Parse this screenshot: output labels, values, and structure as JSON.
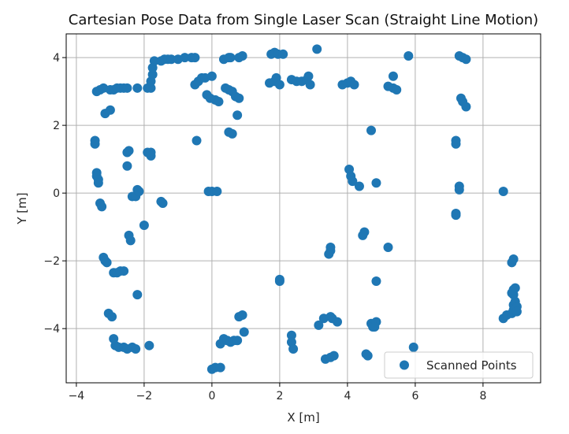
{
  "colors": {
    "point": "#1f77b4",
    "grid": "#b0b0b0",
    "axis": "#000000"
  },
  "chart_data": {
    "type": "scatter",
    "title": "Cartesian Pose Data from Single Laser Scan (Straight Line Motion)",
    "xlabel": "X [m]",
    "ylabel": "Y [m]",
    "xlim": [
      -4.3,
      9.7
    ],
    "ylim": [
      -5.6,
      4.7
    ],
    "xticks": [
      -4,
      -2,
      0,
      2,
      4,
      6,
      8
    ],
    "yticks": [
      -4,
      -2,
      0,
      2,
      4
    ],
    "xtick_labels": [
      "−4",
      "−2",
      "0",
      "2",
      "4",
      "6",
      "8"
    ],
    "ytick_labels": [
      "−4",
      "−2",
      "0",
      "2",
      "4"
    ],
    "grid": true,
    "legend_position": "lower-right",
    "series": [
      {
        "name": "Scanned Points",
        "marker": "circle",
        "points": [
          [
            -3.4,
            3.0
          ],
          [
            -3.3,
            3.05
          ],
          [
            -3.2,
            3.1
          ],
          [
            -3.0,
            3.05
          ],
          [
            -2.9,
            3.05
          ],
          [
            -2.8,
            3.1
          ],
          [
            -2.7,
            3.1
          ],
          [
            -2.6,
            3.1
          ],
          [
            -2.5,
            3.1
          ],
          [
            -2.2,
            3.1
          ],
          [
            -1.9,
            3.1
          ],
          [
            -1.8,
            3.1
          ],
          [
            -1.8,
            3.3
          ],
          [
            -1.75,
            3.5
          ],
          [
            -1.75,
            3.7
          ],
          [
            -1.7,
            3.9
          ],
          [
            -1.5,
            3.9
          ],
          [
            -1.4,
            3.95
          ],
          [
            -1.3,
            3.95
          ],
          [
            -1.2,
            3.95
          ],
          [
            -1.0,
            3.95
          ],
          [
            -0.8,
            4.0
          ],
          [
            -0.6,
            4.0
          ],
          [
            -0.5,
            4.0
          ],
          [
            -3.15,
            2.35
          ],
          [
            -3.0,
            2.45
          ],
          [
            -2.5,
            1.2
          ],
          [
            -2.45,
            1.25
          ],
          [
            -2.5,
            0.8
          ],
          [
            -1.9,
            1.2
          ],
          [
            -1.8,
            1.2
          ],
          [
            -1.8,
            1.1
          ],
          [
            -3.45,
            1.55
          ],
          [
            -3.45,
            1.45
          ],
          [
            -3.4,
            0.6
          ],
          [
            -3.4,
            0.5
          ],
          [
            -3.35,
            0.4
          ],
          [
            -3.35,
            0.3
          ],
          [
            -3.3,
            -0.3
          ],
          [
            -3.25,
            -0.4
          ],
          [
            -2.35,
            -0.1
          ],
          [
            -2.25,
            -0.1
          ],
          [
            -2.2,
            0.1
          ],
          [
            -2.15,
            0.05
          ],
          [
            -2.0,
            -0.95
          ],
          [
            -2.45,
            -1.25
          ],
          [
            -2.4,
            -1.4
          ],
          [
            -1.5,
            -0.25
          ],
          [
            -1.45,
            -0.3
          ],
          [
            -3.2,
            -1.9
          ],
          [
            -3.15,
            -2.0
          ],
          [
            -3.1,
            -2.05
          ],
          [
            -2.9,
            -2.35
          ],
          [
            -2.8,
            -2.35
          ],
          [
            -2.7,
            -2.3
          ],
          [
            -2.6,
            -2.3
          ],
          [
            -2.2,
            -3.0
          ],
          [
            -3.05,
            -3.55
          ],
          [
            -2.95,
            -3.65
          ],
          [
            -2.9,
            -4.3
          ],
          [
            -2.85,
            -4.5
          ],
          [
            -2.75,
            -4.55
          ],
          [
            -2.6,
            -4.55
          ],
          [
            -2.5,
            -4.6
          ],
          [
            -2.35,
            -4.55
          ],
          [
            -2.25,
            -4.6
          ],
          [
            -1.85,
            -4.5
          ],
          [
            -0.5,
            3.2
          ],
          [
            -0.4,
            3.3
          ],
          [
            -0.3,
            3.4
          ],
          [
            -0.2,
            3.4
          ],
          [
            0.0,
            3.45
          ],
          [
            -0.15,
            2.9
          ],
          [
            -0.05,
            2.8
          ],
          [
            0.1,
            2.75
          ],
          [
            0.2,
            2.7
          ],
          [
            -0.45,
            1.55
          ],
          [
            -0.1,
            0.05
          ],
          [
            0.0,
            0.05
          ],
          [
            0.15,
            0.05
          ],
          [
            0.35,
            3.95
          ],
          [
            0.5,
            4.0
          ],
          [
            0.55,
            4.0
          ],
          [
            0.8,
            4.0
          ],
          [
            0.9,
            4.05
          ],
          [
            0.4,
            3.1
          ],
          [
            0.5,
            3.05
          ],
          [
            0.6,
            3.0
          ],
          [
            0.7,
            2.85
          ],
          [
            0.8,
            2.8
          ],
          [
            0.75,
            2.3
          ],
          [
            0.5,
            1.8
          ],
          [
            0.6,
            1.75
          ],
          [
            1.75,
            4.1
          ],
          [
            1.85,
            4.15
          ],
          [
            1.95,
            4.1
          ],
          [
            2.1,
            4.1
          ],
          [
            3.1,
            4.25
          ],
          [
            1.7,
            3.25
          ],
          [
            1.85,
            3.3
          ],
          [
            1.9,
            3.4
          ],
          [
            2.0,
            3.2
          ],
          [
            2.35,
            3.35
          ],
          [
            2.5,
            3.3
          ],
          [
            2.65,
            3.3
          ],
          [
            2.8,
            3.35
          ],
          [
            2.85,
            3.45
          ],
          [
            2.9,
            3.2
          ],
          [
            3.85,
            3.2
          ],
          [
            4.0,
            3.25
          ],
          [
            4.1,
            3.3
          ],
          [
            4.2,
            3.2
          ],
          [
            4.05,
            0.7
          ],
          [
            4.1,
            0.5
          ],
          [
            4.15,
            0.35
          ],
          [
            4.35,
            0.2
          ],
          [
            4.85,
            0.3
          ],
          [
            4.7,
            1.85
          ],
          [
            5.2,
            3.15
          ],
          [
            5.35,
            3.1
          ],
          [
            5.45,
            3.05
          ],
          [
            5.35,
            3.45
          ],
          [
            5.8,
            4.05
          ],
          [
            7.3,
            4.05
          ],
          [
            7.4,
            4.0
          ],
          [
            7.5,
            3.95
          ],
          [
            7.35,
            2.8
          ],
          [
            7.4,
            2.7
          ],
          [
            7.5,
            2.55
          ],
          [
            7.2,
            1.55
          ],
          [
            7.2,
            1.45
          ],
          [
            7.3,
            0.2
          ],
          [
            7.3,
            0.1
          ],
          [
            7.2,
            -0.6
          ],
          [
            7.2,
            -0.65
          ],
          [
            8.6,
            0.05
          ],
          [
            2.0,
            -2.6
          ],
          [
            2.0,
            -2.55
          ],
          [
            3.5,
            -1.6
          ],
          [
            3.5,
            -1.7
          ],
          [
            3.45,
            -1.8
          ],
          [
            4.5,
            -1.15
          ],
          [
            4.45,
            -1.25
          ],
          [
            5.2,
            -1.6
          ],
          [
            4.85,
            -2.6
          ],
          [
            3.15,
            -3.9
          ],
          [
            3.3,
            -3.7
          ],
          [
            3.5,
            -3.65
          ],
          [
            3.55,
            -3.7
          ],
          [
            3.7,
            -3.8
          ],
          [
            4.7,
            -3.85
          ],
          [
            4.75,
            -3.95
          ],
          [
            4.85,
            -3.8
          ],
          [
            4.8,
            -3.95
          ],
          [
            2.35,
            -4.2
          ],
          [
            2.35,
            -4.4
          ],
          [
            2.4,
            -4.6
          ],
          [
            3.35,
            -4.9
          ],
          [
            3.5,
            -4.85
          ],
          [
            3.6,
            -4.8
          ],
          [
            4.55,
            -4.75
          ],
          [
            4.6,
            -4.8
          ],
          [
            5.95,
            -4.55
          ],
          [
            0.0,
            -5.2
          ],
          [
            0.1,
            -5.15
          ],
          [
            0.25,
            -5.15
          ],
          [
            0.25,
            -4.45
          ],
          [
            0.35,
            -4.3
          ],
          [
            0.45,
            -4.35
          ],
          [
            0.55,
            -4.4
          ],
          [
            0.65,
            -4.35
          ],
          [
            0.75,
            -4.35
          ],
          [
            0.8,
            -3.65
          ],
          [
            0.9,
            -3.6
          ],
          [
            0.95,
            -4.1
          ],
          [
            8.6,
            -3.7
          ],
          [
            8.7,
            -3.6
          ],
          [
            8.85,
            -3.55
          ],
          [
            8.9,
            -3.45
          ],
          [
            8.9,
            -3.3
          ],
          [
            8.95,
            -3.2
          ],
          [
            8.9,
            -3.0
          ],
          [
            8.85,
            -2.95
          ],
          [
            8.9,
            -2.85
          ],
          [
            8.95,
            -2.8
          ],
          [
            8.85,
            -2.05
          ],
          [
            8.9,
            -1.95
          ],
          [
            9.0,
            -3.35
          ],
          [
            9.0,
            -3.5
          ]
        ]
      }
    ]
  }
}
